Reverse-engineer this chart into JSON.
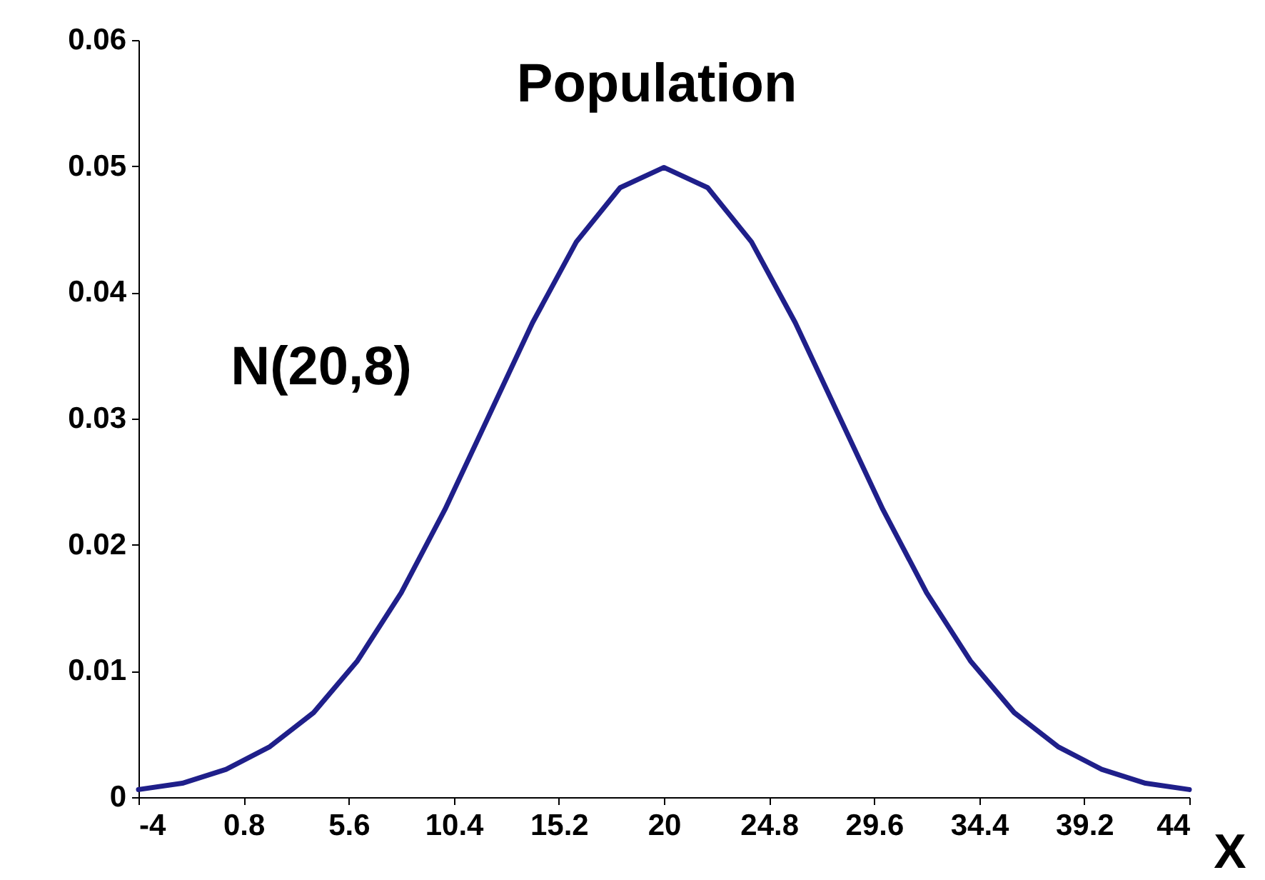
{
  "chart_data": {
    "type": "line",
    "title": "Population",
    "xlabel": "X",
    "annotations": [
      "N(20,8)"
    ],
    "x": [
      -4,
      -2,
      0,
      2,
      4,
      6,
      8,
      10,
      12,
      14,
      16,
      18,
      20,
      22,
      24,
      26,
      28,
      30,
      32,
      34,
      36,
      38,
      40,
      42,
      44
    ],
    "series": [
      {
        "color": "#1f1f8a",
        "values": [
          0.0006,
          0.0011,
          0.0022,
          0.004,
          0.0067,
          0.0108,
          0.0162,
          0.0228,
          0.0302,
          0.0376,
          0.044,
          0.0483,
          0.0499,
          0.0483,
          0.044,
          0.0376,
          0.0302,
          0.0228,
          0.0162,
          0.0108,
          0.0067,
          0.004,
          0.0022,
          0.0011,
          0.0006
        ]
      }
    ],
    "xlim": [
      -4,
      44
    ],
    "xticks": [
      -4,
      0.8,
      5.6,
      10.4,
      15.2,
      20,
      24.8,
      29.6,
      34.4,
      39.2,
      44
    ],
    "ylim": [
      0,
      0.06
    ],
    "yticks": [
      0,
      0.01,
      0.02,
      0.03,
      0.04,
      0.05,
      0.06
    ],
    "line_style": "solid"
  }
}
